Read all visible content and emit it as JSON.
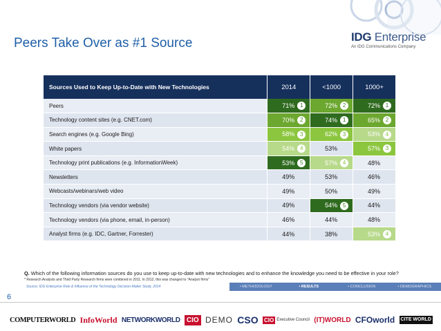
{
  "slide": {
    "title": "Peers Take Over as #1 Source",
    "page_number": "6"
  },
  "logo": {
    "name_bold": "IDG",
    "name_light": "Enterprise",
    "tagline": "An IDG Communications Company"
  },
  "colors": {
    "title": "#1f5fa8",
    "header_bg": "#16305c",
    "rank1_green": "#2f6b1f",
    "rank2_green": "#6ca72f",
    "rank3_green": "#8cc63f",
    "rank4_green": "#b7d98a",
    "nav_bg": "#5b7fb8"
  },
  "table": {
    "header": {
      "label": "Sources Used to Keep Up-to-Date with New Technologies",
      "col_2014": "2014",
      "col_small": "<1000",
      "col_large": "1000+"
    },
    "rows": [
      {
        "label": "Peers",
        "v2014": "71%",
        "r2014": "1",
        "vsmall": "72%",
        "rsmall": "2",
        "vlarge": "72%",
        "rlarge": "1"
      },
      {
        "label": "Technology content sites (e.g. CNET.com)",
        "v2014": "70%",
        "r2014": "2",
        "vsmall": "74%",
        "rsmall": "1",
        "vlarge": "65%",
        "rlarge": "2"
      },
      {
        "label": "Search engines (e.g. Google Bing)",
        "v2014": "58%",
        "r2014": "3",
        "vsmall": "62%",
        "rsmall": "3",
        "vlarge": "53%",
        "rlarge": "4"
      },
      {
        "label": "White papers",
        "v2014": "54%",
        "r2014": "4",
        "vsmall": "53%",
        "rsmall": "",
        "vlarge": "57%",
        "rlarge": "3"
      },
      {
        "label": "Technology print publications (e.g. InformationWeek)",
        "v2014": "53%",
        "r2014": "5",
        "vsmall": "57%",
        "rsmall": "4",
        "vlarge": "48%",
        "rlarge": ""
      },
      {
        "label": "Newsletters",
        "v2014": "49%",
        "r2014": "",
        "vsmall": "53%",
        "rsmall": "",
        "vlarge": "46%",
        "rlarge": ""
      },
      {
        "label": "Webcasts/webinars/web video",
        "v2014": "49%",
        "r2014": "",
        "vsmall": "50%",
        "rsmall": "",
        "vlarge": "49%",
        "rlarge": ""
      },
      {
        "label": "Technology vendors (via vendor website)",
        "v2014": "49%",
        "r2014": "",
        "vsmall": "54%",
        "rsmall": "5",
        "vlarge": "44%",
        "rlarge": ""
      },
      {
        "label": "Technology vendors (via phone, email, in-person)",
        "v2014": "46%",
        "r2014": "",
        "vsmall": "44%",
        "rsmall": "",
        "vlarge": "48%",
        "rlarge": ""
      },
      {
        "label": "Analyst firms (e.g. IDC, Gartner, Forrester)",
        "v2014": "44%",
        "r2014": "",
        "vsmall": "38%",
        "rsmall": "",
        "vlarge": "53%",
        "rlarge": "4"
      }
    ]
  },
  "question": {
    "prefix": "Q.",
    "text": "Which of the following information sources do you use to keep up-to-date with new technologies and to enhance the knowledge you need to be effective in your role?"
  },
  "footnote": "* Research Analysts and Third Party Research firms were combined in 2011. In 2012, this was changed to \"Analyst firms\"",
  "source": "Source: IDG Enterprise Role & Influence of the Technology Decision-Maker Study, 2014",
  "nav": {
    "methodology": "• METHODOLOGY",
    "results": "• RESULTS",
    "conclusion": "• CONCLUSION",
    "demographics": "• DEMOGRAPHICS"
  },
  "brands": {
    "computerworld": "COMPUTERWORLD",
    "infoworld": "InfoWorld",
    "networkworld": "NETWORKWORLD",
    "cio": "CIO",
    "demo": "DEMO",
    "cso": "CSO",
    "cio_ec_box": "CIO",
    "cio_ec_text": "Executive Council",
    "itworld": "(IT)WORLD",
    "cfoworld": "CFOworld",
    "citeworld": "CITE WORLD"
  }
}
